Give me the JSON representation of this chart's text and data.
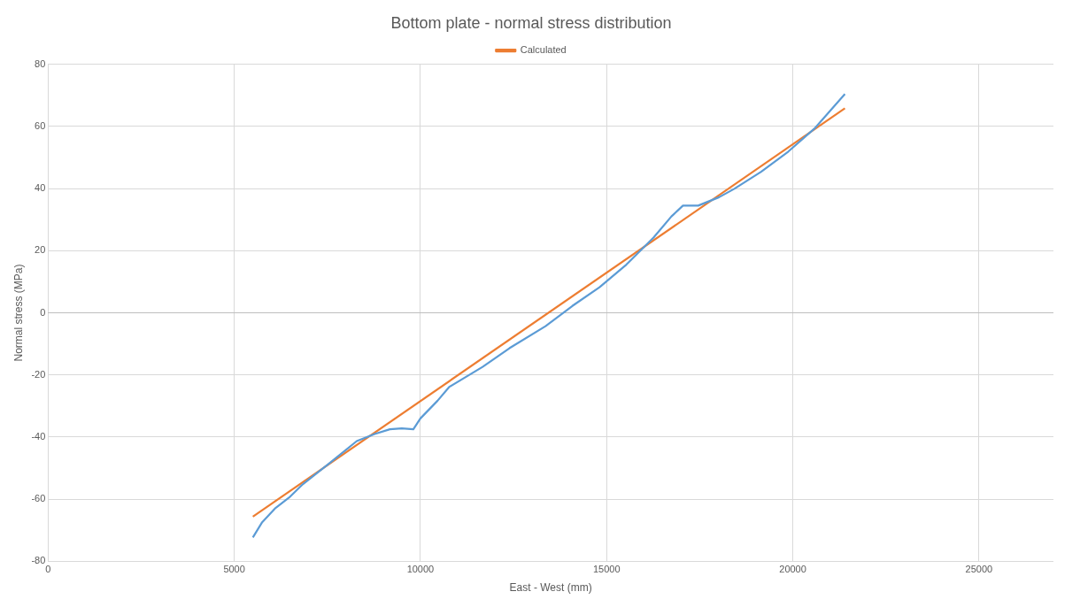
{
  "chart_data": {
    "type": "line",
    "title": "Bottom plate - normal stress distribution",
    "xlabel": "East - West (mm)",
    "ylabel": "Normal stress (MPa)",
    "xlim": [
      0,
      27000
    ],
    "xticks": [
      0,
      5000,
      10000,
      15000,
      20000,
      25000
    ],
    "ylim": [
      -80,
      80
    ],
    "yticks": [
      -80,
      -60,
      -40,
      -20,
      0,
      20,
      40,
      60,
      80
    ],
    "grid": true,
    "legend": "top",
    "marker": "none",
    "line_style": "solid",
    "series": [
      {
        "color": "#5b9bd5",
        "x": [
          5500,
          5750,
          6110,
          6470,
          6840,
          7560,
          8290,
          8770,
          9180,
          9500,
          9810,
          10000,
          10460,
          10770,
          11670,
          12390,
          13360,
          14080,
          14810,
          15530,
          16260,
          16740,
          17050,
          17460,
          18020,
          18430,
          19150,
          19880,
          20600,
          21400
        ],
        "values": [
          -72.3,
          -67.4,
          -62.8,
          -59.5,
          -55.2,
          -48.4,
          -41.3,
          -39,
          -37.5,
          -37.2,
          -37.5,
          -34,
          -28.3,
          -23.9,
          -17.4,
          -11.4,
          -4.3,
          2.2,
          8.2,
          15.5,
          24.2,
          31,
          34.5,
          34.5,
          37.2,
          39.9,
          45.4,
          51.9,
          59.5,
          70.4
        ]
      },
      {
        "name": "Calculated",
        "color": "#ed7d31",
        "x": [
          5500,
          21400
        ],
        "values": [
          -65.6,
          65.8
        ]
      }
    ]
  }
}
